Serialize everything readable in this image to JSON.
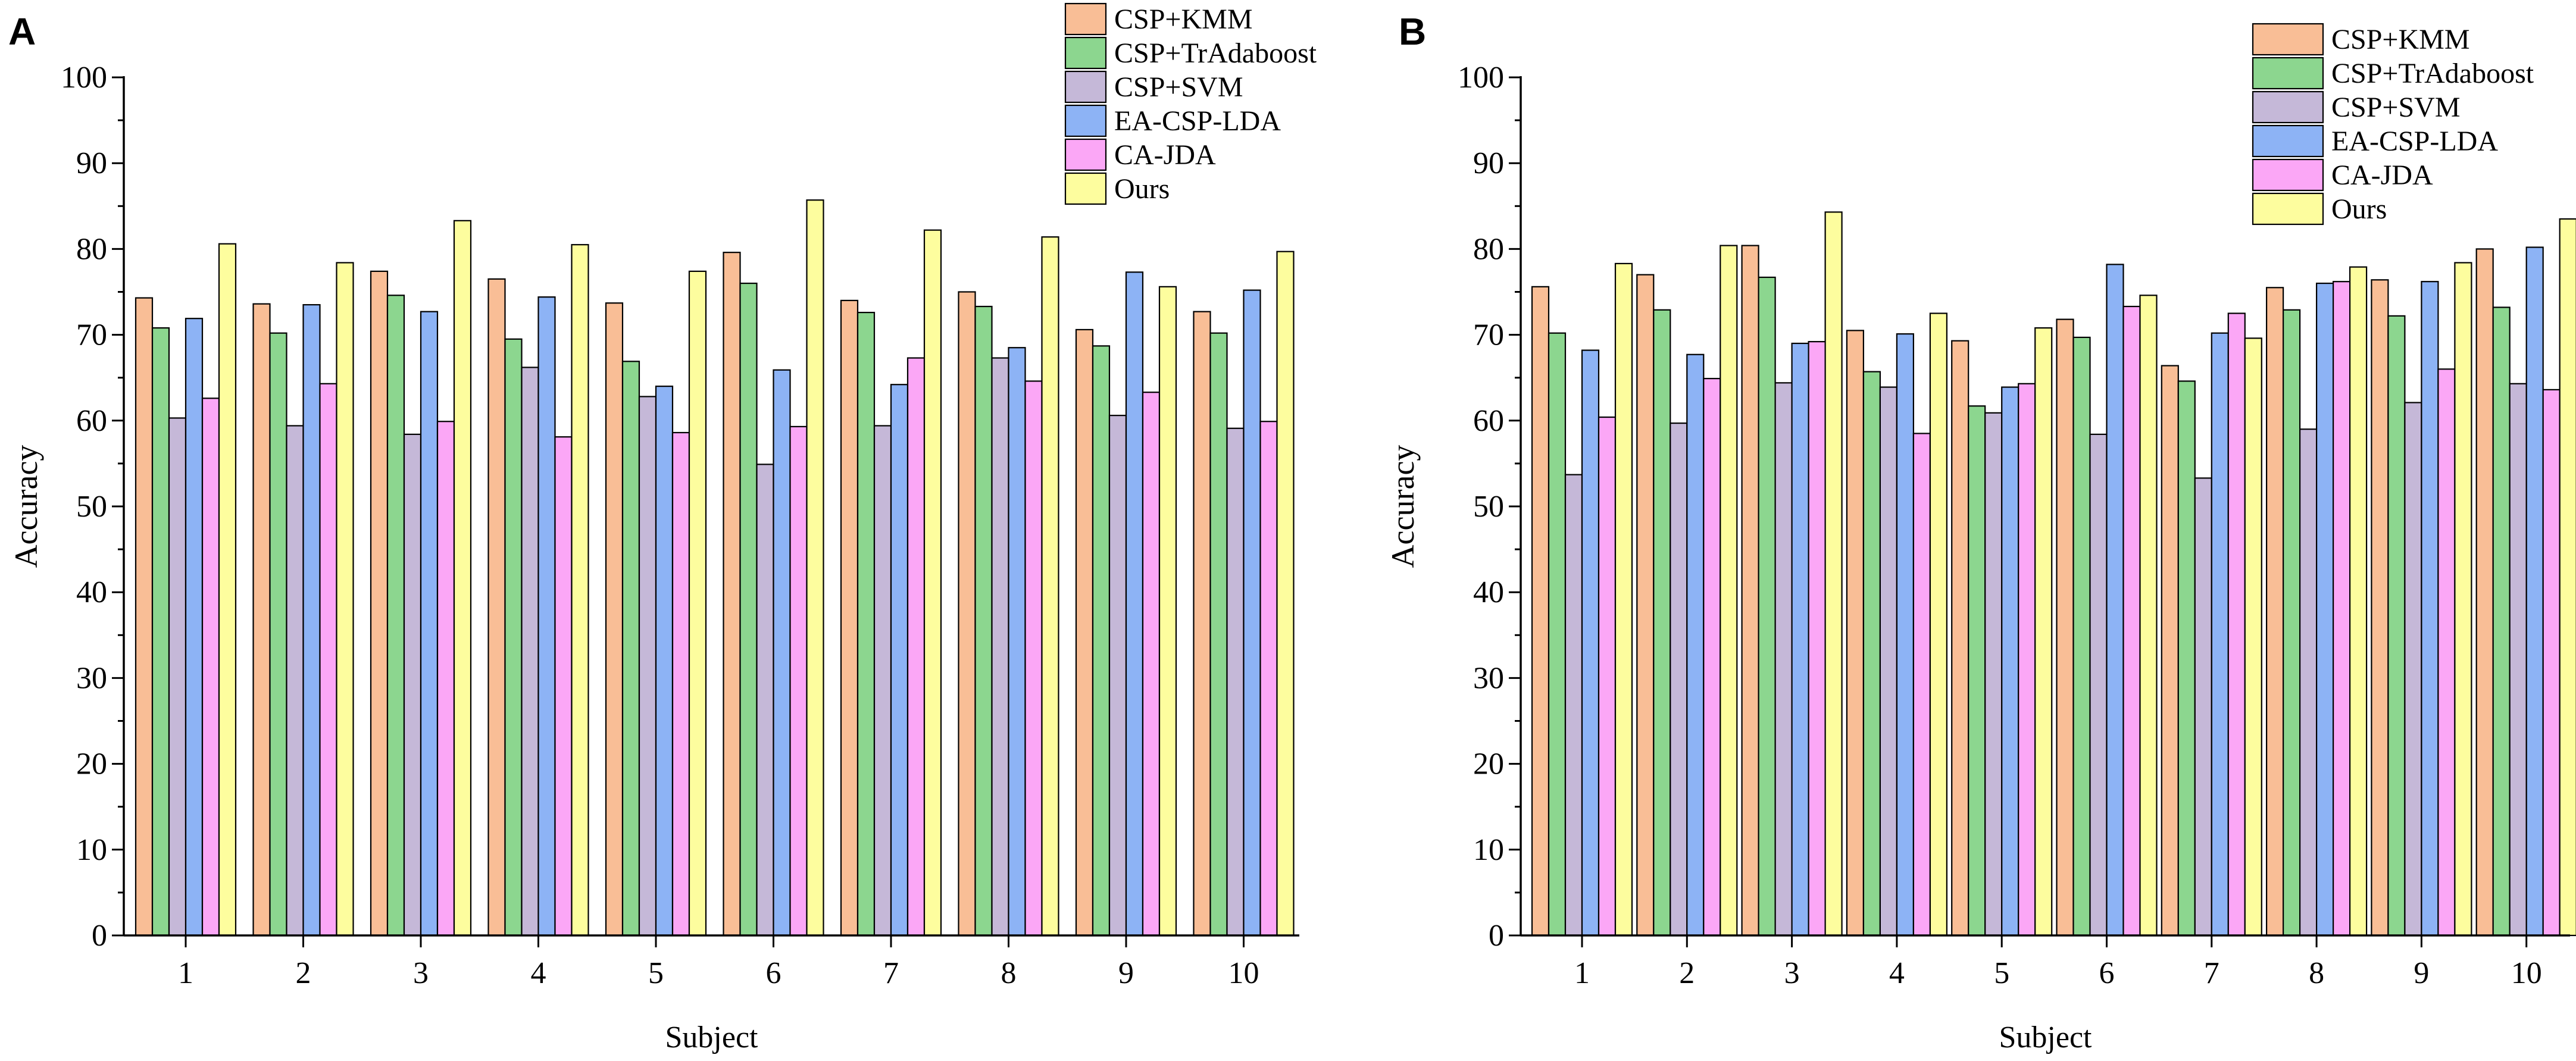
{
  "chart_data": [
    {
      "type": "bar",
      "panel_label": "A",
      "xlabel": "Subject",
      "ylabel": "Accuracy",
      "ylim": [
        0,
        100
      ],
      "yticks": [
        0,
        10,
        20,
        30,
        40,
        50,
        60,
        70,
        80,
        90,
        100
      ],
      "categories": [
        "1",
        "2",
        "3",
        "4",
        "5",
        "6",
        "7",
        "8",
        "9",
        "10"
      ],
      "legend_position": "top-right",
      "series": [
        {
          "name": "CSP+KMM",
          "color": "#F9BE96",
          "values": [
            74.3,
            73.6,
            77.4,
            76.5,
            73.7,
            79.6,
            74.0,
            75.0,
            70.6,
            72.7
          ]
        },
        {
          "name": "CSP+TrAdaboost",
          "color": "#8CD68F",
          "values": [
            70.8,
            70.2,
            74.6,
            69.5,
            66.9,
            76.0,
            72.6,
            73.3,
            68.7,
            70.2
          ]
        },
        {
          "name": "CSP+SVM",
          "color": "#C5B8D8",
          "values": [
            60.3,
            59.4,
            58.4,
            66.2,
            62.8,
            54.9,
            59.4,
            67.3,
            60.6,
            59.1
          ]
        },
        {
          "name": "EA-CSP-LDA",
          "color": "#8DB3F5",
          "values": [
            71.9,
            73.5,
            72.7,
            74.4,
            64.0,
            65.9,
            64.2,
            68.5,
            77.3,
            75.2
          ]
        },
        {
          "name": "CA-JDA",
          "color": "#FBA7F6",
          "values": [
            62.6,
            64.3,
            59.9,
            58.1,
            58.6,
            59.3,
            67.3,
            64.6,
            63.3,
            59.9
          ]
        },
        {
          "name": "Ours",
          "color": "#FDFD9E",
          "values": [
            80.6,
            78.4,
            83.3,
            80.5,
            77.4,
            85.7,
            82.2,
            81.4,
            75.6,
            79.7
          ]
        }
      ]
    },
    {
      "type": "bar",
      "panel_label": "B",
      "xlabel": "Subject",
      "ylabel": "Accuracy",
      "ylim": [
        0,
        100
      ],
      "yticks": [
        0,
        10,
        20,
        30,
        40,
        50,
        60,
        70,
        80,
        90,
        100
      ],
      "categories": [
        "1",
        "2",
        "3",
        "4",
        "5",
        "6",
        "7",
        "8",
        "9",
        "10"
      ],
      "legend_position": "top-right",
      "series": [
        {
          "name": "CSP+KMM",
          "color": "#F9BE96",
          "values": [
            75.6,
            77.0,
            80.4,
            70.5,
            69.3,
            71.8,
            66.4,
            75.5,
            76.4,
            80.0
          ]
        },
        {
          "name": "CSP+TrAdaboost",
          "color": "#8CD68F",
          "values": [
            70.2,
            72.9,
            76.7,
            65.7,
            61.7,
            69.7,
            64.6,
            72.9,
            72.2,
            73.2
          ]
        },
        {
          "name": "CSP+SVM",
          "color": "#C5B8D8",
          "values": [
            53.7,
            59.7,
            64.4,
            63.9,
            60.9,
            58.4,
            53.3,
            59.0,
            62.1,
            64.3
          ]
        },
        {
          "name": "EA-CSP-LDA",
          "color": "#8DB3F5",
          "values": [
            68.2,
            67.7,
            69.0,
            70.1,
            63.9,
            78.2,
            70.2,
            76.0,
            76.2,
            80.2
          ]
        },
        {
          "name": "CA-JDA",
          "color": "#FBA7F6",
          "values": [
            60.4,
            64.9,
            69.2,
            58.5,
            64.3,
            73.3,
            72.5,
            76.2,
            66.0,
            63.6
          ]
        },
        {
          "name": "Ours",
          "color": "#FDFD9E",
          "values": [
            78.3,
            80.4,
            84.3,
            72.5,
            70.8,
            74.6,
            69.6,
            77.9,
            78.4,
            83.5
          ]
        }
      ]
    }
  ]
}
